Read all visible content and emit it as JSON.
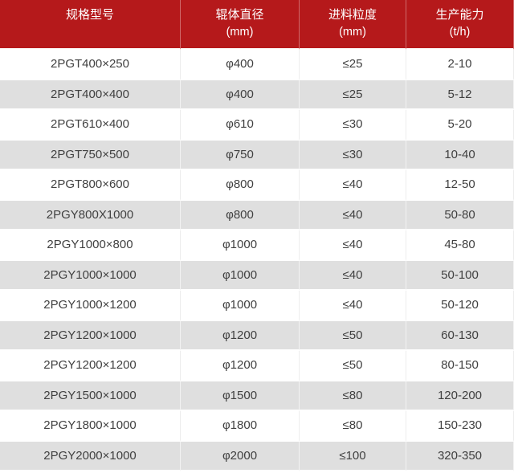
{
  "colors": {
    "header_bg": "#b5191b",
    "header_text": "#ffffff",
    "row_bg_white": "#ffffff",
    "row_bg_gray": "#dfdfdf",
    "body_text": "#404040"
  },
  "table": {
    "columns": [
      {
        "label": "规格型号",
        "unit": ""
      },
      {
        "label": "辊体直径",
        "unit": "(mm)"
      },
      {
        "label": "进料粒度",
        "unit": "(mm)"
      },
      {
        "label": "生产能力",
        "unit": "(t/h)"
      }
    ],
    "rows": [
      [
        "2PGT400×250",
        "φ400",
        "≤25",
        "2-10"
      ],
      [
        "2PGT400×400",
        "φ400",
        "≤25",
        "5-12"
      ],
      [
        "2PGT610×400",
        "φ610",
        "≤30",
        "5-20"
      ],
      [
        "2PGT750×500",
        "φ750",
        "≤30",
        "10-40"
      ],
      [
        "2PGT800×600",
        "φ800",
        "≤40",
        "12-50"
      ],
      [
        "2PGY800X1000",
        "φ800",
        "≤40",
        "50-80"
      ],
      [
        "2PGY1000×800",
        "φ1000",
        "≤40",
        "45-80"
      ],
      [
        "2PGY1000×1000",
        "φ1000",
        "≤40",
        "50-100"
      ],
      [
        "2PGY1000×1200",
        "φ1000",
        "≤40",
        "50-120"
      ],
      [
        "2PGY1200×1000",
        "φ1200",
        "≤50",
        "60-130"
      ],
      [
        "2PGY1200×1200",
        "φ1200",
        "≤50",
        "80-150"
      ],
      [
        "2PGY1500×1000",
        "φ1500",
        "≤80",
        "120-200"
      ],
      [
        "2PGY1800×1000",
        "φ1800",
        "≤80",
        "150-230"
      ],
      [
        "2PGY2000×1000",
        "φ2000",
        "≤100",
        "320-350"
      ]
    ]
  },
  "chart_data": {
    "type": "table",
    "title": "",
    "columns": [
      "规格型号",
      "辊体直径 (mm)",
      "进料粒度 (mm)",
      "生产能力 (t/h)"
    ],
    "rows": [
      [
        "2PGT400×250",
        "φ400",
        "≤25",
        "2-10"
      ],
      [
        "2PGT400×400",
        "φ400",
        "≤25",
        "5-12"
      ],
      [
        "2PGT610×400",
        "φ610",
        "≤30",
        "5-20"
      ],
      [
        "2PGT750×500",
        "φ750",
        "≤30",
        "10-40"
      ],
      [
        "2PGT800×600",
        "φ800",
        "≤40",
        "12-50"
      ],
      [
        "2PGY800X1000",
        "φ800",
        "≤40",
        "50-80"
      ],
      [
        "2PGY1000×800",
        "φ1000",
        "≤40",
        "45-80"
      ],
      [
        "2PGY1000×1000",
        "φ1000",
        "≤40",
        "50-100"
      ],
      [
        "2PGY1000×1200",
        "φ1000",
        "≤40",
        "50-120"
      ],
      [
        "2PGY1200×1000",
        "φ1200",
        "≤50",
        "60-130"
      ],
      [
        "2PGY1200×1200",
        "φ1200",
        "≤50",
        "80-150"
      ],
      [
        "2PGY1500×1000",
        "φ1500",
        "≤80",
        "120-200"
      ],
      [
        "2PGY1800×1000",
        "φ1800",
        "≤80",
        "150-230"
      ],
      [
        "2PGY2000×1000",
        "φ2000",
        "≤100",
        "320-350"
      ]
    ]
  }
}
